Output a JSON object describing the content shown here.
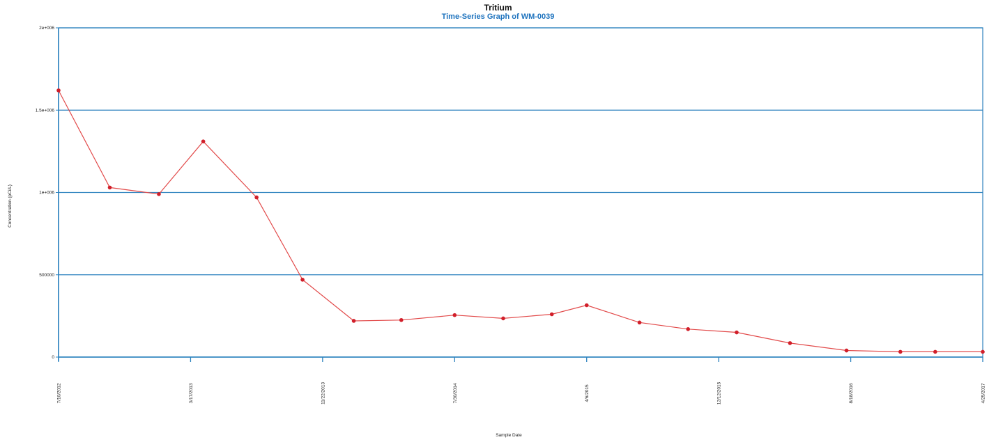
{
  "colors": {
    "grid": "#2e83bf",
    "line": "#e24a4a",
    "marker": "#d11f2a",
    "subtitle": "#1e73be"
  },
  "chart_data": {
    "type": "line",
    "title": "Tritium",
    "subtitle": "Time-Series Graph of WM-0039",
    "xlabel": "Sample Date",
    "ylabel": "Concentration (pCi/L)",
    "ylim": [
      0,
      2000000
    ],
    "y_ticks": [
      {
        "value": 0,
        "label": "0"
      },
      {
        "value": 500000,
        "label": "500000"
      },
      {
        "value": 1000000,
        "label": "1e+006"
      },
      {
        "value": 1500000,
        "label": "1.5e+006"
      },
      {
        "value": 2000000,
        "label": "2e+006"
      }
    ],
    "xlim": [
      "2012-07-10",
      "2017-04-25"
    ],
    "x_ticks": [
      {
        "date": "2012-07-10",
        "label": "7/10/2012"
      },
      {
        "date": "2013-03-17",
        "label": "3/17/2013"
      },
      {
        "date": "2013-11-22",
        "label": "11/22/2013"
      },
      {
        "date": "2014-07-30",
        "label": "7/30/2014"
      },
      {
        "date": "2015-04-06",
        "label": "4/6/2015"
      },
      {
        "date": "2015-12-12",
        "label": "12/12/2015"
      },
      {
        "date": "2016-08-18",
        "label": "8/18/2016"
      },
      {
        "date": "2017-04-25",
        "label": "4/25/2017"
      }
    ],
    "grid": true,
    "legend": "none",
    "series": [
      {
        "points": [
          {
            "x": "2012-07-10",
            "y": 1620000
          },
          {
            "x": "2012-10-15",
            "y": 1030000
          },
          {
            "x": "2013-01-16",
            "y": 990000
          },
          {
            "x": "2013-04-10",
            "y": 1310000
          },
          {
            "x": "2013-07-20",
            "y": 970000
          },
          {
            "x": "2013-10-15",
            "y": 470000
          },
          {
            "x": "2014-01-20",
            "y": 220000
          },
          {
            "x": "2014-04-20",
            "y": 225000
          },
          {
            "x": "2014-07-30",
            "y": 255000
          },
          {
            "x": "2014-10-30",
            "y": 235000
          },
          {
            "x": "2015-01-30",
            "y": 260000
          },
          {
            "x": "2015-04-06",
            "y": 315000
          },
          {
            "x": "2015-07-15",
            "y": 210000
          },
          {
            "x": "2015-10-15",
            "y": 170000
          },
          {
            "x": "2016-01-15",
            "y": 150000
          },
          {
            "x": "2016-04-25",
            "y": 85000
          },
          {
            "x": "2016-08-10",
            "y": 40000
          },
          {
            "x": "2016-11-20",
            "y": 32000
          },
          {
            "x": "2017-01-25",
            "y": 32000
          },
          {
            "x": "2017-04-25",
            "y": 32000
          }
        ]
      }
    ]
  }
}
